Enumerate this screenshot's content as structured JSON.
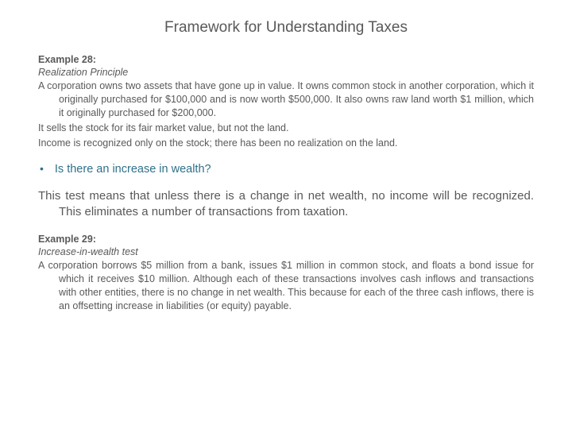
{
  "title": "Framework for Understanding Taxes",
  "example28": {
    "label": "Example 28:",
    "principle": "Realization Principle",
    "para1": "A corporation owns two assets that have gone up in value. It owns common stock in another corporation, which it originally purchased for $100,000 and is now worth $500,000. It also owns raw land worth $1 million, which it originally purchased for $200,000.",
    "para2": "It sells the stock for its fair market value, but not the land.",
    "para3": "Income is recognized only on the stock; there has been no realization on the land."
  },
  "bullet": {
    "marker": "•",
    "text": "Is there an increase in wealth?"
  },
  "testPara": "This test means that unless there is a change in net wealth, no income will be recognized. This eliminates a number of transactions from taxation.",
  "example29": {
    "label": "Example 29:",
    "principle": "Increase-in-wealth test",
    "para1": "A corporation borrows $5 million from a bank, issues $1 million in common stock, and floats a bond issue for which it receives $10 million. Although each of these transactions involves cash inflows and transactions with other entities, there is no change in net wealth. This because for each of the three cash inflows, there is an offsetting increase in liabilities (or equity) payable."
  }
}
